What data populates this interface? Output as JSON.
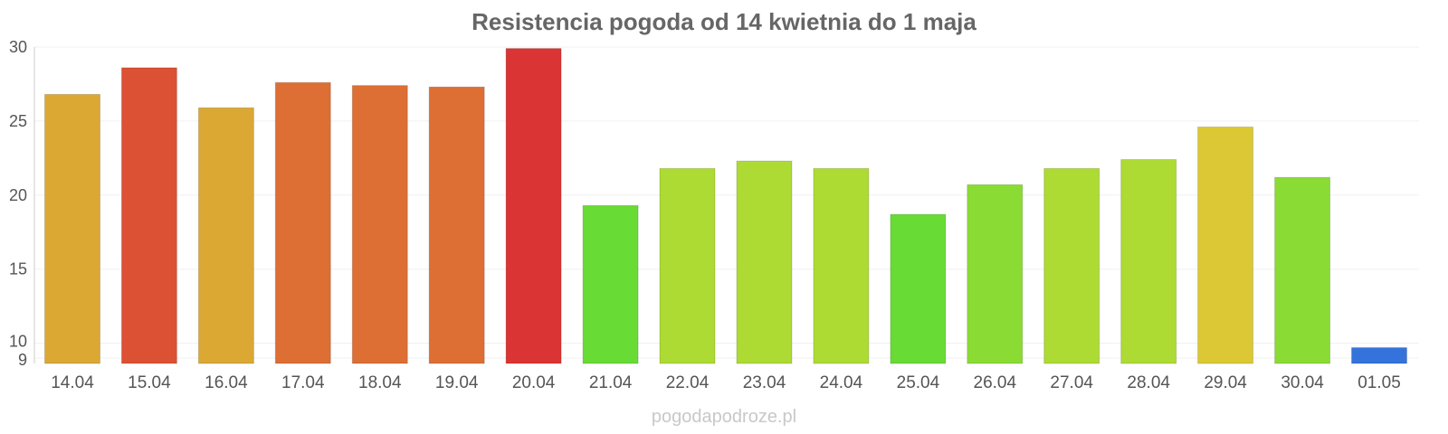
{
  "chart_data": {
    "type": "bar",
    "title": "Resistencia pogoda od 14 kwietnia do 1 maja",
    "xlabel": "",
    "ylabel": "",
    "categories": [
      "14.04",
      "15.04",
      "16.04",
      "17.04",
      "18.04",
      "19.04",
      "20.04",
      "21.04",
      "22.04",
      "23.04",
      "24.04",
      "25.04",
      "26.04",
      "27.04",
      "28.04",
      "29.04",
      "30.04",
      "01.05"
    ],
    "values": [
      26.8,
      28.6,
      25.9,
      27.6,
      27.4,
      27.3,
      29.9,
      19.3,
      21.8,
      22.3,
      21.8,
      18.7,
      20.7,
      21.8,
      22.4,
      24.6,
      21.2,
      9.7
    ],
    "colors": [
      "#dba834",
      "#dc5033",
      "#dba834",
      "#dd6e34",
      "#dd6e34",
      "#dd6e34",
      "#db3434",
      "#68db34",
      "#addb34",
      "#addb34",
      "#addb34",
      "#68db34",
      "#8adb34",
      "#addb34",
      "#addb34",
      "#dbc834",
      "#8adb34",
      "#3473db"
    ],
    "ylim": [
      9,
      30
    ],
    "yticks": [
      9,
      10,
      15,
      20,
      25,
      30
    ],
    "grid": true,
    "legend": "none"
  },
  "credit": "pogodapodroze.pl"
}
